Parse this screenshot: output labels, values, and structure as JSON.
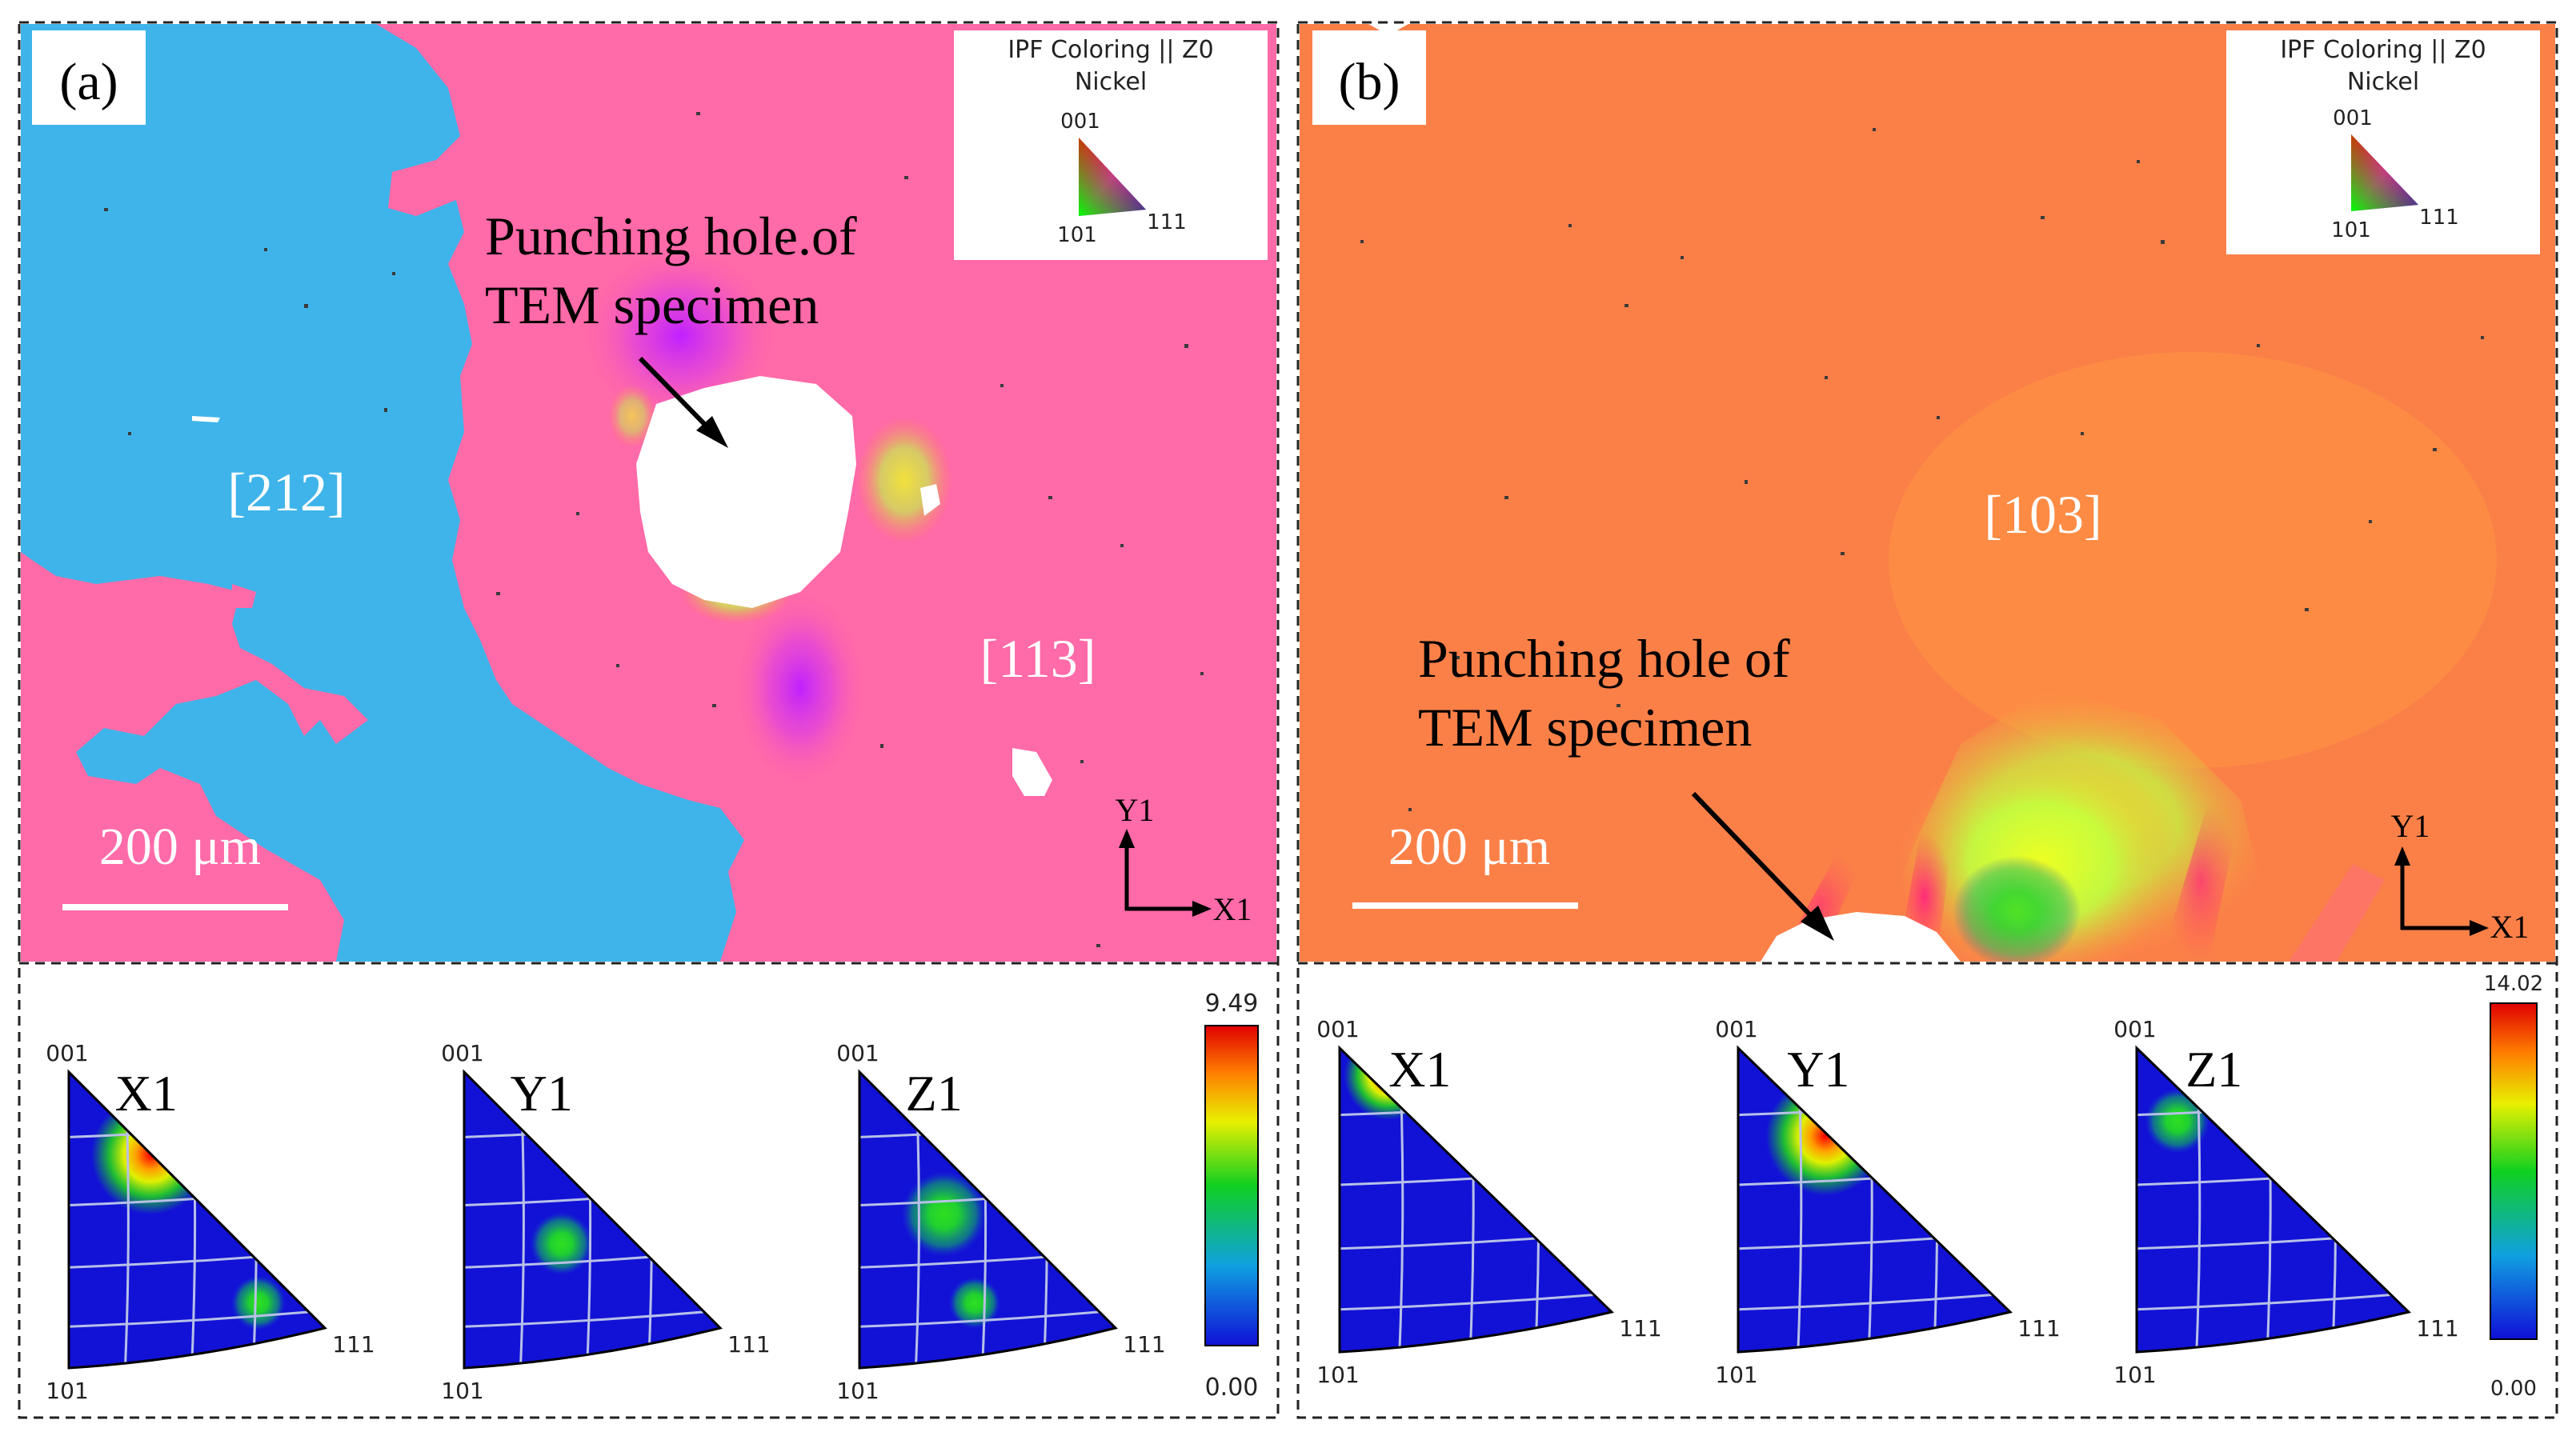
{
  "panels": [
    {
      "label": "(a)",
      "legend": {
        "title": "IPF Coloring || Z0",
        "material": "Nickel",
        "pole_001": "001",
        "pole_101": "101",
        "pole_111": "111"
      },
      "annotation": "Punching hole of TEM specimen",
      "annotation_line1": "Punching hole.of",
      "annotation_line2": "TEM specimen",
      "grain_labels": [
        "[212]",
        "[113]"
      ],
      "scale_bar": "200 μm",
      "axes": {
        "y": "Y1",
        "x": "X1"
      },
      "ipf_titles": [
        "X1",
        "Y1",
        "Z1"
      ],
      "ipf_poles": {
        "top": "001",
        "bottom_left": "101",
        "bottom_right": "111"
      },
      "colorbar": {
        "max": "9.49",
        "min": "0.00"
      }
    },
    {
      "label": "(b)",
      "legend": {
        "title": "IPF Coloring || Z0",
        "material": "Nickel",
        "pole_001": "001",
        "pole_101": "101",
        "pole_111": "111"
      },
      "annotation_line1": "Punching hole of",
      "annotation_line2": "TEM specimen",
      "grain_labels": [
        "[103]"
      ],
      "scale_bar": "200 μm",
      "axes": {
        "y": "Y1",
        "x": "X1"
      },
      "ipf_titles": [
        "X1",
        "Y1",
        "Z1"
      ],
      "ipf_poles": {
        "top": "001",
        "bottom_left": "101",
        "bottom_right": "111"
      },
      "colorbar": {
        "max": "14.02",
        "min": "0.00"
      }
    }
  ]
}
